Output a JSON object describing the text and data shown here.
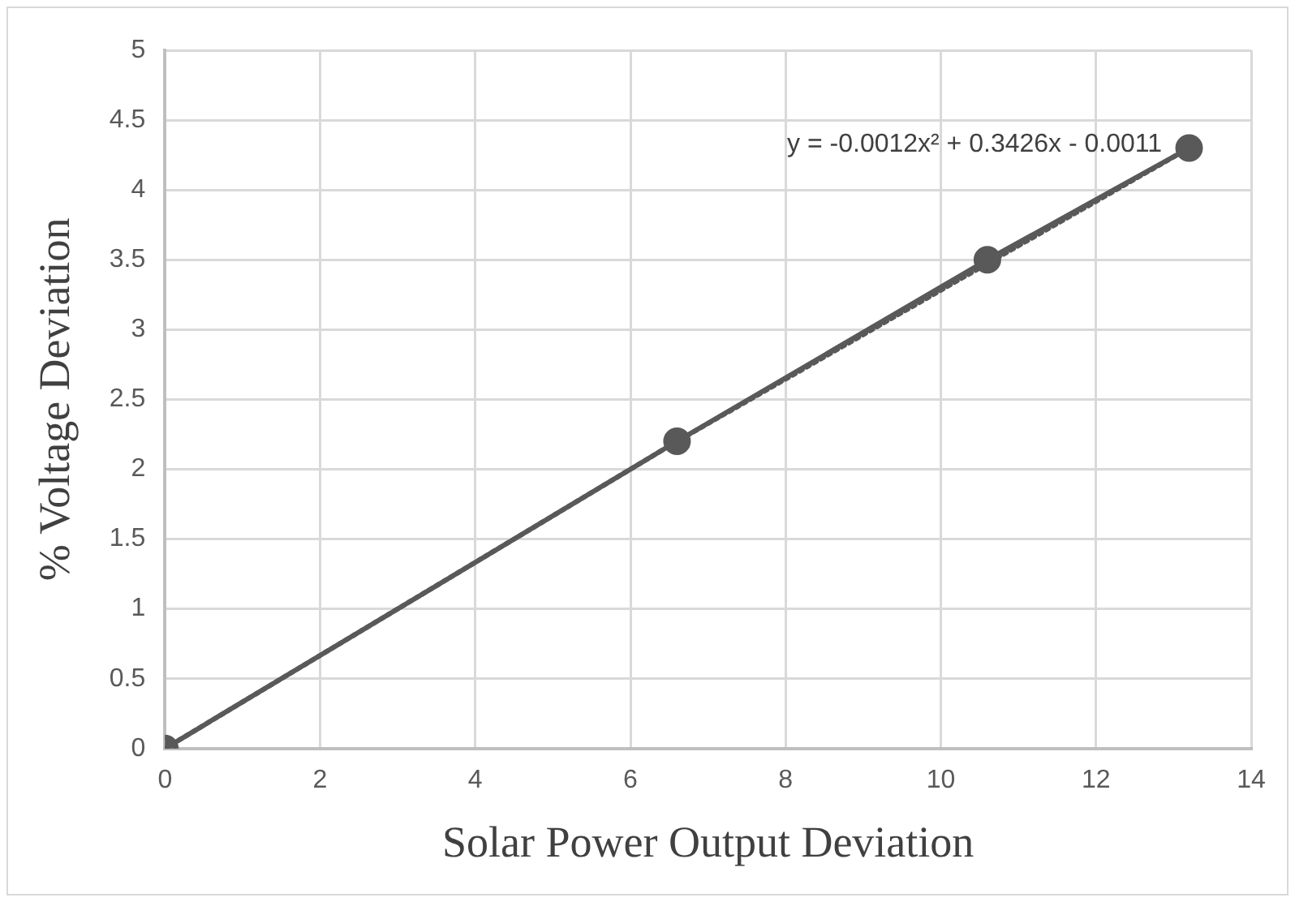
{
  "chart_data": {
    "type": "line",
    "xlabel": "Solar Power Output Deviation",
    "ylabel": "% Voltage Deviation",
    "annotations": [
      "y = -0.0012x² + 0.3426x - 0.0011"
    ],
    "xlim": [
      0,
      14
    ],
    "xticks": [
      0,
      2,
      4,
      6,
      8,
      10,
      12,
      14
    ],
    "ylim": [
      0,
      5
    ],
    "yticks": [
      0,
      0.5,
      1,
      1.5,
      2,
      2.5,
      3,
      3.5,
      4,
      4.5,
      5
    ],
    "grid": true,
    "legend": false,
    "series": [
      {
        "type": "line",
        "color": "#595959",
        "x": [
          0,
          6.6,
          10.6,
          13.2
        ],
        "values": [
          0,
          2.2,
          3.5,
          4.3
        ],
        "marker": "circle",
        "line_style": "solid"
      },
      {
        "type": "line",
        "color": "#595959",
        "x": [
          0,
          6.6,
          13.2
        ],
        "values": [
          0,
          2.2,
          4.3
        ],
        "marker": "none",
        "line_style": "dotted"
      }
    ]
  }
}
